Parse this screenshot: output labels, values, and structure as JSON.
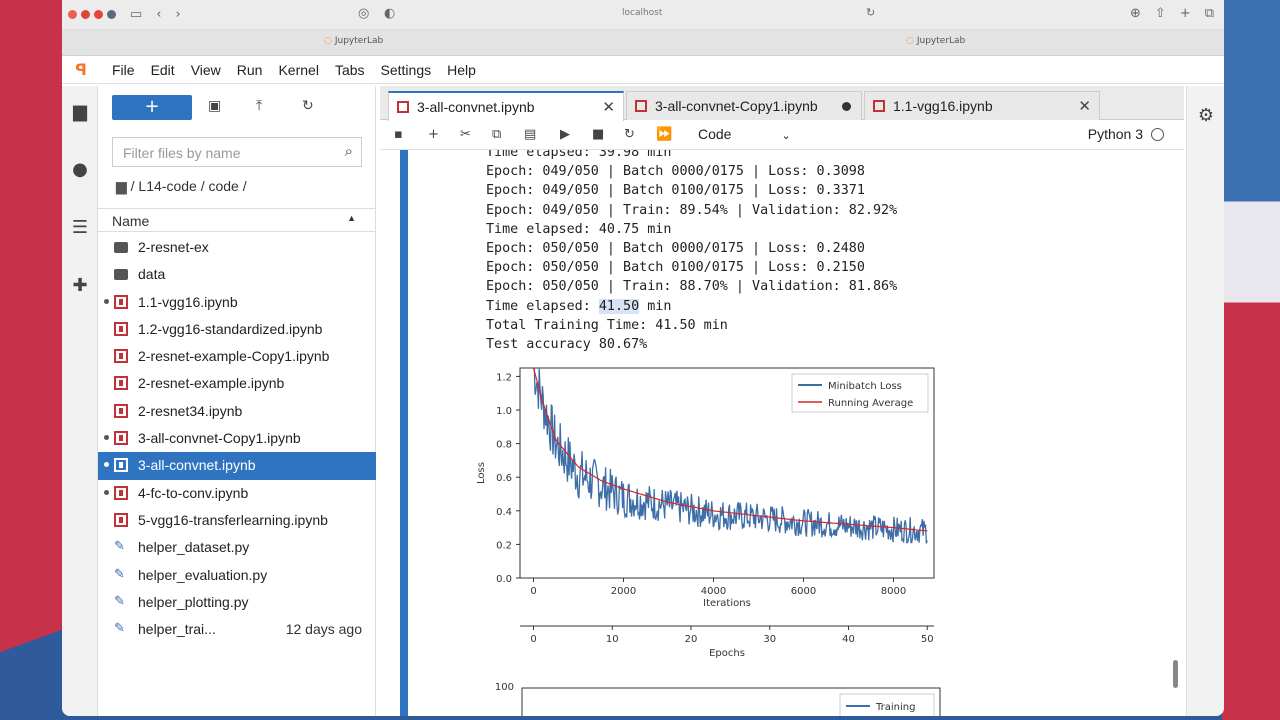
{
  "browser": {
    "url": "localhost",
    "tabs": [
      "JupyterLab",
      "JupyterLab"
    ]
  },
  "menu": [
    "File",
    "Edit",
    "View",
    "Run",
    "Kernel",
    "Tabs",
    "Settings",
    "Help"
  ],
  "filebrowser": {
    "filter_placeholder": "Filter files by name",
    "breadcrumb": "/ L14-code / code /",
    "name_header": "Name",
    "files": [
      {
        "name": "2-resnet-ex",
        "type": "folder",
        "running": false,
        "date": ""
      },
      {
        "name": "data",
        "type": "folder",
        "running": false,
        "date": ""
      },
      {
        "name": "1.1-vgg16.ipynb",
        "type": "notebook",
        "running": true,
        "date": ""
      },
      {
        "name": "1.2-vgg16-standardized.ipynb",
        "type": "notebook",
        "running": false,
        "date": ""
      },
      {
        "name": "2-resnet-example-Copy1.ipynb",
        "type": "notebook",
        "running": false,
        "date": ""
      },
      {
        "name": "2-resnet-example.ipynb",
        "type": "notebook",
        "running": false,
        "date": ""
      },
      {
        "name": "2-resnet34.ipynb",
        "type": "notebook",
        "running": false,
        "date": ""
      },
      {
        "name": "3-all-convnet-Copy1.ipynb",
        "type": "notebook",
        "running": true,
        "date": ""
      },
      {
        "name": "3-all-convnet.ipynb",
        "type": "notebook",
        "running": true,
        "date": "",
        "selected": true
      },
      {
        "name": "4-fc-to-conv.ipynb",
        "type": "notebook",
        "running": true,
        "date": ""
      },
      {
        "name": "5-vgg16-transferlearning.ipynb",
        "type": "notebook",
        "running": false,
        "date": ""
      },
      {
        "name": "helper_dataset.py",
        "type": "python",
        "running": false,
        "date": ""
      },
      {
        "name": "helper_evaluation.py",
        "type": "python",
        "running": false,
        "date": ""
      },
      {
        "name": "helper_plotting.py",
        "type": "python",
        "running": false,
        "date": ""
      },
      {
        "name": "helper_trai...",
        "type": "python",
        "running": false,
        "date": "12 days ago"
      }
    ]
  },
  "doc_tabs": [
    {
      "label": "3-all-convnet.ipynb",
      "state": "close"
    },
    {
      "label": "3-all-convnet-Copy1.ipynb",
      "state": "unsaved"
    },
    {
      "label": "1.1-vgg16.ipynb",
      "state": "close"
    }
  ],
  "toolbar": {
    "cell_type": "Code",
    "kernel": "Python 3"
  },
  "output_lines": [
    "Time elapsed: 39.98 min",
    "Epoch: 049/050 | Batch 0000/0175 | Loss: 0.3098",
    "Epoch: 049/050 | Batch 0100/0175 | Loss: 0.3371",
    "Epoch: 049/050 | Train: 89.54% | Validation: 82.92%",
    "Time elapsed: 40.75 min",
    "Epoch: 050/050 | Batch 0000/0175 | Loss: 0.2480",
    "Epoch: 050/050 | Batch 0100/0175 | Loss: 0.2150",
    "Epoch: 050/050 | Train: 88.70% | Validation: 81.86%",
    "Time elapsed: 41.50 min",
    "Total Training Time: 41.50 min",
    "Test accuracy 80.67%"
  ],
  "colors": {
    "accent": "#2f74c0",
    "loss_line": "#3d6ea8",
    "avg_line": "#d62728"
  },
  "chart_data": [
    {
      "type": "line",
      "ylabel": "Loss",
      "xlabel": "Iterations",
      "xlabel2": "Epochs",
      "ylim": [
        0.0,
        1.25
      ],
      "xlim": [
        -300,
        8900
      ],
      "yticks": [
        "0.0",
        "0.2",
        "0.4",
        "0.6",
        "0.8",
        "1.0",
        "1.2"
      ],
      "xticks": [
        "0",
        "2000",
        "4000",
        "6000",
        "8000"
      ],
      "epoch_ticks": [
        "0",
        "10",
        "20",
        "30",
        "40",
        "50"
      ],
      "legend": [
        "Minibatch Loss",
        "Running Average"
      ],
      "series": [
        {
          "name": "Minibatch Loss",
          "x": [
            0,
            200,
            500,
            1000,
            1500,
            2000,
            3000,
            4000,
            5000,
            6000,
            7000,
            8000,
            8750
          ],
          "y": [
            1.25,
            1.05,
            0.8,
            0.62,
            0.55,
            0.48,
            0.43,
            0.38,
            0.36,
            0.33,
            0.31,
            0.29,
            0.28
          ]
        },
        {
          "name": "Running Average",
          "x": [
            0,
            200,
            500,
            1000,
            1500,
            2000,
            3000,
            4000,
            5000,
            6000,
            7000,
            8000,
            8750
          ],
          "y": [
            1.25,
            1.05,
            0.82,
            0.66,
            0.58,
            0.53,
            0.45,
            0.4,
            0.37,
            0.34,
            0.32,
            0.3,
            0.28
          ]
        }
      ]
    },
    {
      "type": "line",
      "ytick_top": "100",
      "legend": [
        "Training"
      ]
    }
  ]
}
